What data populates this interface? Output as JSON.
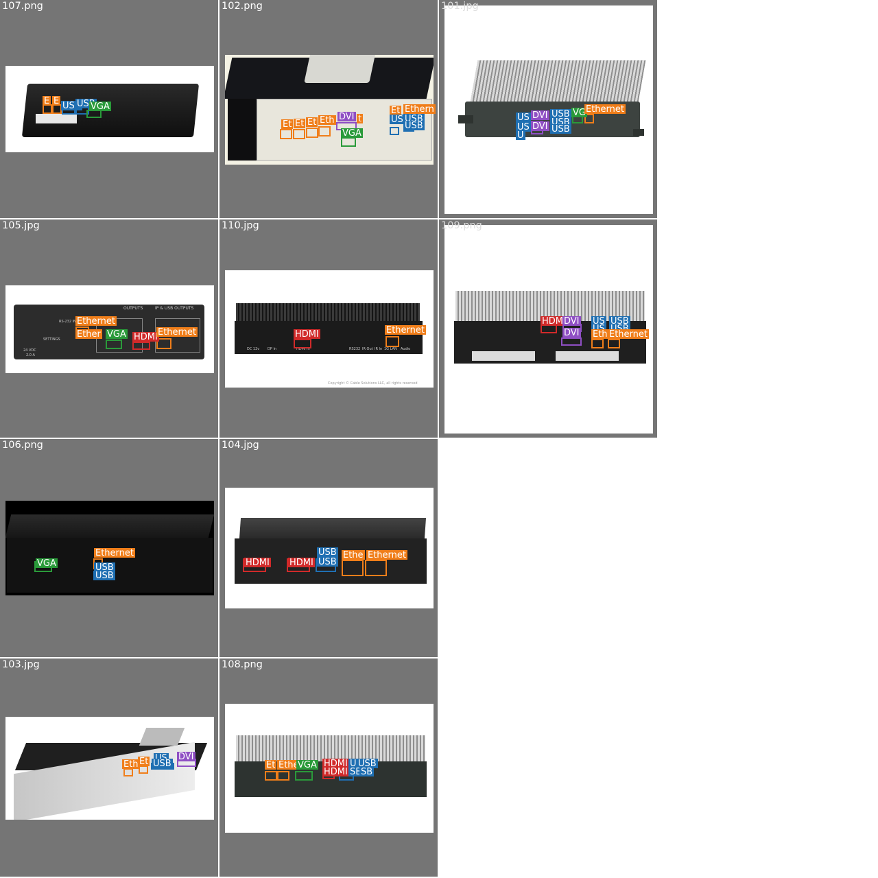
{
  "colors": {
    "tile_bg": "#757575",
    "Ethernet": "#f07e1a",
    "USB": "#1f6fb2",
    "VGA": "#2a9a3a",
    "HDMI": "#d12a2a",
    "DVI": "#8f4fc4"
  },
  "tiles": [
    {
      "filename": "107.png",
      "labels": [
        "E",
        "E",
        "USB",
        "USB",
        "VGA"
      ]
    },
    {
      "filename": "102.png",
      "labels": [
        "Et",
        "Et",
        "Et",
        "Eth",
        "DVI",
        "t",
        "VGA",
        "Et",
        "Ethern",
        "US",
        "USB",
        "USB"
      ]
    },
    {
      "filename": "101.jpg",
      "labels": [
        "US",
        "US",
        "U",
        "DVI",
        "DVI",
        "USB",
        "USB",
        "USB",
        "VG",
        "Ethernet"
      ]
    },
    {
      "filename": "105.jpg",
      "labels": [
        "Ethernet",
        "Ether",
        "VGA",
        "HDMI",
        "Ethernet"
      ],
      "photo_text": [
        "OUTPUTS",
        "IP & USB OUTPUTS",
        "SETTINGS",
        "RS-232 IN",
        "24 VDC",
        "2.0 A"
      ]
    },
    {
      "filename": "110.jpg",
      "labels": [
        "HDMI",
        "Ethernet"
      ],
      "photo_text": [
        "DC 12v",
        "DP In",
        "HDMI In",
        "RS232",
        "IR Out",
        "IR In",
        "1G LAN",
        "Audio"
      ],
      "copyright": "Copyright © Cable Solutions LLC, all rights reserved"
    },
    {
      "filename": "109.png",
      "labels": [
        "HDM",
        "DVI",
        "US",
        "USB",
        "US",
        "USB",
        "DVI",
        "Eth",
        "Ethernet"
      ]
    },
    {
      "filename": "106.png",
      "labels": [
        "VGA",
        "Ethernet",
        "USB",
        "USB"
      ]
    },
    {
      "filename": "104.jpg",
      "labels": [
        "HDMI",
        "HDMI",
        "USB",
        "USB",
        "Ethe",
        "Ethernet"
      ]
    },
    {
      "filename": "103.jpg",
      "labels": [
        "Eth",
        "Et",
        "US",
        "USB",
        "DVI"
      ]
    },
    {
      "filename": "108.png",
      "labels": [
        "Et",
        "Ethe",
        "VGA",
        "HDMI",
        "HDMI",
        "USB",
        "USB",
        "SB",
        "SB"
      ]
    }
  ]
}
